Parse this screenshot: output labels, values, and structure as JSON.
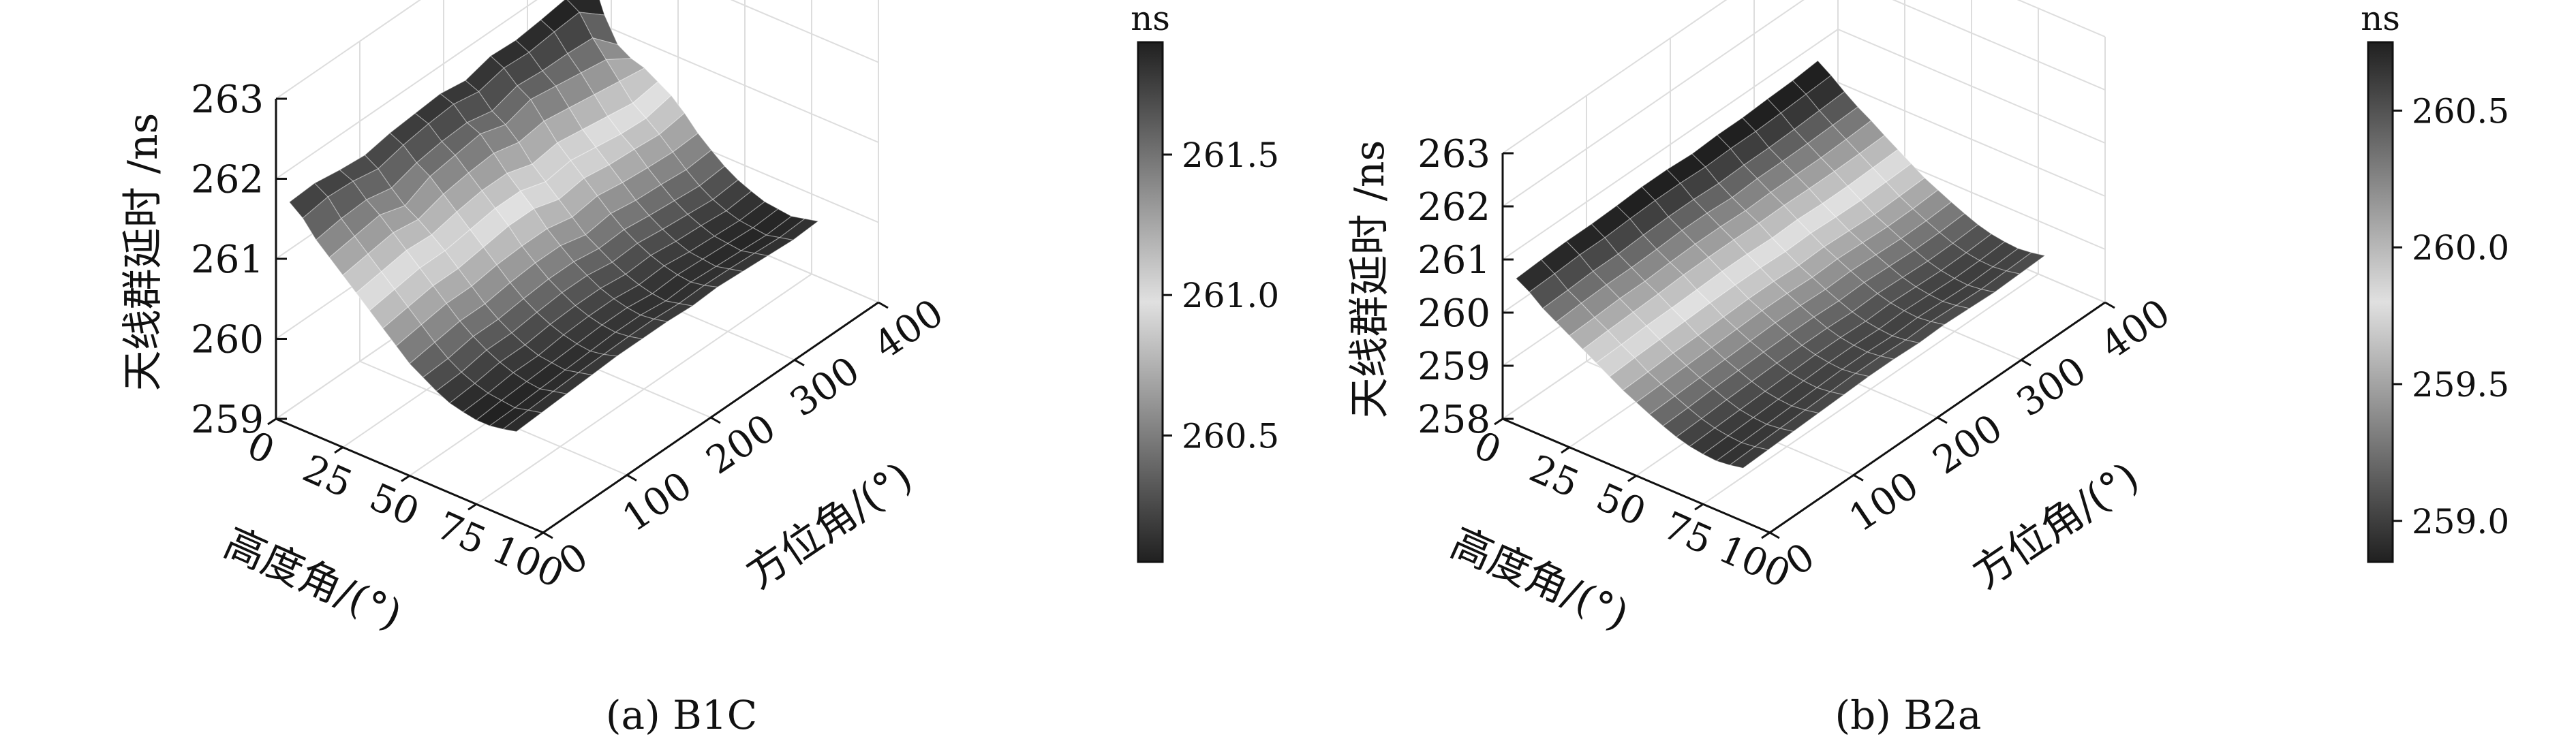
{
  "chart_data": [
    {
      "type": "surface",
      "caption": "(a) B1C",
      "xlabel": "高度角/(°)",
      "ylabel": "方位角/(°)",
      "zlabel": "天线群延时 /ns",
      "xticks": [
        "0",
        "25",
        "50",
        "75",
        "100"
      ],
      "yticks": [
        "0",
        "100",
        "200",
        "300",
        "400"
      ],
      "zticks": [
        "259",
        "260",
        "261",
        "262",
        "263"
      ],
      "xlim": [
        0,
        100
      ],
      "ylim": [
        0,
        400
      ],
      "zlim": [
        259,
        263
      ],
      "elevation_grid": [
        5,
        10,
        15,
        20,
        25,
        30,
        35,
        40,
        45,
        50,
        55,
        60,
        65,
        70,
        75,
        80,
        85,
        90
      ],
      "azimuth_grid": [
        0,
        30,
        60,
        90,
        120,
        150,
        180,
        210,
        240,
        270,
        300,
        330,
        360
      ],
      "z_by_elevation": [
        [
          261.78,
          261.8,
          261.75,
          261.72,
          261.78,
          261.81,
          261.84,
          261.79,
          261.88,
          261.86,
          261.9,
          261.95,
          262.05
        ],
        [
          261.65,
          261.7,
          261.68,
          261.62,
          261.7,
          261.75,
          261.78,
          261.72,
          261.8,
          261.78,
          261.82,
          261.85,
          261.6
        ],
        [
          261.45,
          261.5,
          261.52,
          261.45,
          261.55,
          261.6,
          261.62,
          261.55,
          261.65,
          261.62,
          261.62,
          261.6,
          261.3
        ],
        [
          261.3,
          261.35,
          261.4,
          261.3,
          261.45,
          261.5,
          261.55,
          261.45,
          261.55,
          261.5,
          261.45,
          261.4,
          261.2
        ],
        [
          261.15,
          261.2,
          261.25,
          261.2,
          261.3,
          261.35,
          261.38,
          261.3,
          261.35,
          261.3,
          261.25,
          261.2,
          261.15
        ],
        [
          261.0,
          261.05,
          261.1,
          261.08,
          261.15,
          261.2,
          261.2,
          261.1,
          261.15,
          261.1,
          261.05,
          261.0,
          261.05
        ],
        [
          260.85,
          260.9,
          260.95,
          260.95,
          261.0,
          261.05,
          261.05,
          260.95,
          261.0,
          260.95,
          260.9,
          260.88,
          260.95
        ],
        [
          260.7,
          260.75,
          260.8,
          260.8,
          260.85,
          260.9,
          260.9,
          260.8,
          260.85,
          260.8,
          260.78,
          260.75,
          260.8
        ],
        [
          260.55,
          260.6,
          260.65,
          260.65,
          260.7,
          260.72,
          260.72,
          260.65,
          260.7,
          260.65,
          260.62,
          260.6,
          260.62
        ],
        [
          260.4,
          260.45,
          260.5,
          260.5,
          260.55,
          260.58,
          260.58,
          260.5,
          260.55,
          260.5,
          260.48,
          260.45,
          260.48
        ],
        [
          260.3,
          260.32,
          260.38,
          260.38,
          260.42,
          260.45,
          260.45,
          260.4,
          260.42,
          260.38,
          260.35,
          260.32,
          260.35
        ],
        [
          260.2,
          260.22,
          260.28,
          260.28,
          260.32,
          260.35,
          260.35,
          260.3,
          260.32,
          260.28,
          260.25,
          260.22,
          260.25
        ],
        [
          260.12,
          260.15,
          260.2,
          260.2,
          260.24,
          260.26,
          260.26,
          260.22,
          260.24,
          260.2,
          260.18,
          260.15,
          260.18
        ],
        [
          260.08,
          260.1,
          260.14,
          260.14,
          260.18,
          260.2,
          260.2,
          260.16,
          260.18,
          260.14,
          260.12,
          260.1,
          260.12
        ],
        [
          260.05,
          260.08,
          260.1,
          260.12,
          260.14,
          260.16,
          260.16,
          260.12,
          260.14,
          260.12,
          260.1,
          260.08,
          260.1
        ],
        [
          260.05,
          260.06,
          260.08,
          260.1,
          260.12,
          260.14,
          260.14,
          260.1,
          260.12,
          260.1,
          260.08,
          260.06,
          260.08
        ],
        [
          260.08,
          260.1,
          260.12,
          260.14,
          260.15,
          260.16,
          260.16,
          260.14,
          260.15,
          260.14,
          260.12,
          260.1,
          260.12
        ],
        [
          260.12,
          260.14,
          260.16,
          260.18,
          260.2,
          260.2,
          260.2,
          260.18,
          260.2,
          260.18,
          260.16,
          260.14,
          260.16
        ]
      ],
      "colorbar": {
        "unit": "ns",
        "ticks": [
          "260.5",
          "261.0",
          "261.5"
        ],
        "tick_values": [
          260.5,
          261.0,
          261.5
        ],
        "range": [
          260.05,
          261.9
        ]
      }
    },
    {
      "type": "surface",
      "caption": "(b) B2a",
      "xlabel": "高度角/(°)",
      "ylabel": "方位角/(°)",
      "zlabel": "天线群延时 /ns",
      "xticks": [
        "0",
        "25",
        "50",
        "75",
        "100"
      ],
      "yticks": [
        "0",
        "100",
        "200",
        "300",
        "400"
      ],
      "zticks": [
        "258",
        "259",
        "260",
        "261",
        "262",
        "263"
      ],
      "xlim": [
        0,
        100
      ],
      "ylim": [
        0,
        400
      ],
      "zlim": [
        258,
        263
      ],
      "elevation_grid": [
        5,
        10,
        15,
        20,
        25,
        30,
        35,
        40,
        45,
        50,
        55,
        60,
        65,
        70,
        75,
        80,
        85,
        90
      ],
      "azimuth_grid": [
        0,
        30,
        60,
        90,
        120,
        150,
        180,
        210,
        240,
        270,
        300,
        330,
        360
      ],
      "z_by_elevation": [
        [
          260.75,
          260.78,
          260.8,
          260.8,
          260.82,
          260.85,
          260.85,
          260.82,
          260.85,
          260.85,
          260.88,
          260.9,
          260.95
        ],
        [
          260.6,
          260.62,
          260.65,
          260.65,
          260.68,
          260.7,
          260.7,
          260.68,
          260.7,
          260.7,
          260.72,
          260.75,
          260.78
        ],
        [
          260.4,
          260.42,
          260.45,
          260.45,
          260.48,
          260.5,
          260.5,
          260.48,
          260.5,
          260.5,
          260.52,
          260.55,
          260.58
        ],
        [
          260.25,
          260.28,
          260.3,
          260.3,
          260.32,
          260.35,
          260.35,
          260.32,
          260.35,
          260.35,
          260.36,
          260.38,
          260.4
        ],
        [
          260.1,
          260.12,
          260.15,
          260.15,
          260.18,
          260.2,
          260.2,
          260.18,
          260.2,
          260.2,
          260.2,
          260.22,
          260.25
        ],
        [
          259.95,
          259.98,
          260.0,
          260.02,
          260.05,
          260.06,
          260.06,
          260.05,
          260.06,
          260.05,
          260.05,
          260.06,
          260.08
        ],
        [
          259.8,
          259.82,
          259.85,
          259.86,
          259.88,
          259.9,
          259.9,
          259.88,
          259.9,
          259.88,
          259.88,
          259.9,
          259.92
        ],
        [
          259.65,
          259.68,
          259.7,
          259.72,
          259.74,
          259.75,
          259.75,
          259.73,
          259.75,
          259.73,
          259.72,
          259.74,
          259.76
        ],
        [
          259.5,
          259.52,
          259.55,
          259.56,
          259.58,
          259.6,
          259.6,
          259.58,
          259.6,
          259.58,
          259.56,
          259.58,
          259.6
        ],
        [
          259.38,
          259.4,
          259.42,
          259.44,
          259.46,
          259.48,
          259.48,
          259.46,
          259.48,
          259.46,
          259.44,
          259.45,
          259.48
        ],
        [
          259.26,
          259.28,
          259.3,
          259.32,
          259.34,
          259.36,
          259.36,
          259.34,
          259.36,
          259.34,
          259.32,
          259.33,
          259.36
        ],
        [
          259.15,
          259.17,
          259.2,
          259.22,
          259.24,
          259.25,
          259.25,
          259.23,
          259.25,
          259.23,
          259.21,
          259.22,
          259.25
        ],
        [
          259.05,
          259.07,
          259.1,
          259.12,
          259.14,
          259.15,
          259.15,
          259.13,
          259.15,
          259.13,
          259.11,
          259.12,
          259.15
        ],
        [
          258.98,
          259.0,
          259.02,
          259.04,
          259.06,
          259.08,
          259.08,
          259.06,
          259.08,
          259.06,
          259.04,
          259.05,
          259.08
        ],
        [
          258.94,
          258.96,
          258.98,
          259.0,
          259.02,
          259.04,
          259.04,
          259.02,
          259.04,
          259.02,
          259.0,
          259.01,
          259.04
        ],
        [
          258.92,
          258.94,
          258.96,
          258.98,
          259.0,
          259.02,
          259.02,
          259.0,
          259.02,
          259.0,
          258.98,
          259.0,
          259.02
        ],
        [
          258.95,
          258.97,
          258.99,
          259.01,
          259.03,
          259.05,
          259.05,
          259.03,
          259.05,
          259.03,
          259.01,
          259.03,
          259.05
        ],
        [
          259.0,
          259.02,
          259.04,
          259.06,
          259.08,
          259.1,
          259.1,
          259.08,
          259.1,
          259.08,
          259.06,
          259.08,
          259.1
        ]
      ],
      "colorbar": {
        "unit": "ns",
        "ticks": [
          "259.0",
          "259.5",
          "260.0",
          "260.5"
        ],
        "tick_values": [
          259.0,
          259.5,
          260.0,
          260.5
        ],
        "range": [
          258.85,
          260.75
        ]
      }
    }
  ]
}
